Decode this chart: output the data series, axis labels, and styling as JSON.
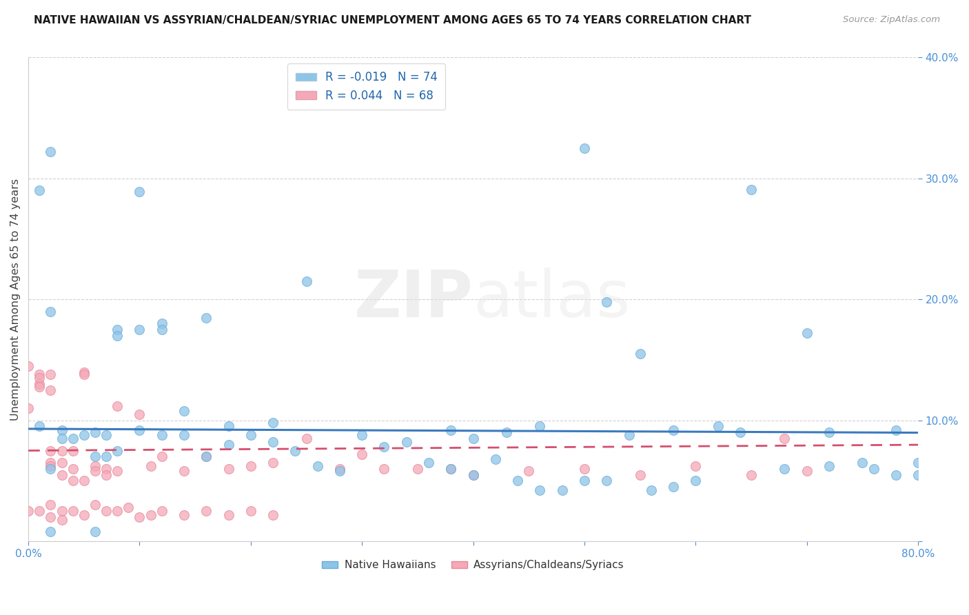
{
  "title": "NATIVE HAWAIIAN VS ASSYRIAN/CHALDEAN/SYRIAC UNEMPLOYMENT AMONG AGES 65 TO 74 YEARS CORRELATION CHART",
  "source": "Source: ZipAtlas.com",
  "ylabel": "Unemployment Among Ages 65 to 74 years",
  "xlim": [
    0.0,
    0.8
  ],
  "ylim": [
    0.0,
    0.4
  ],
  "xticks": [
    0.0,
    0.1,
    0.2,
    0.3,
    0.4,
    0.5,
    0.6,
    0.7,
    0.8
  ],
  "xticklabels": [
    "0.0%",
    "",
    "",
    "",
    "",
    "",
    "",
    "",
    "80.0%"
  ],
  "yticks": [
    0.0,
    0.1,
    0.2,
    0.3,
    0.4
  ],
  "yticklabels": [
    "",
    "10.0%",
    "20.0%",
    "30.0%",
    "40.0%"
  ],
  "blue_color": "#8ec4e8",
  "pink_color": "#f4a8b8",
  "blue_edge_color": "#6aadd5",
  "pink_edge_color": "#e8889a",
  "blue_line_color": "#3a7abf",
  "pink_line_color": "#d44f6e",
  "R_blue": -0.019,
  "N_blue": 74,
  "R_pink": 0.044,
  "N_pink": 68,
  "legend_label_blue": "Native Hawaiians",
  "legend_label_pink": "Assyrians/Chaldeans/Syriacs",
  "blue_x": [
    0.02,
    0.01,
    0.1,
    0.02,
    0.08,
    0.01,
    0.03,
    0.03,
    0.06,
    0.08,
    0.12,
    0.1,
    0.14,
    0.05,
    0.07,
    0.07,
    0.22,
    0.25,
    0.18,
    0.38,
    0.4,
    0.43,
    0.46,
    0.5,
    0.52,
    0.55,
    0.58,
    0.62,
    0.65,
    0.7,
    0.72,
    0.75,
    0.78,
    0.8,
    0.02,
    0.04,
    0.06,
    0.08,
    0.1,
    0.12,
    0.14,
    0.16,
    0.18,
    0.2,
    0.22,
    0.24,
    0.26,
    0.28,
    0.3,
    0.32,
    0.34,
    0.36,
    0.38,
    0.4,
    0.42,
    0.44,
    0.46,
    0.48,
    0.5,
    0.52,
    0.54,
    0.56,
    0.58,
    0.6,
    0.64,
    0.68,
    0.72,
    0.76,
    0.78,
    0.8,
    0.02,
    0.06,
    0.12,
    0.16
  ],
  "blue_y": [
    0.322,
    0.29,
    0.289,
    0.19,
    0.175,
    0.095,
    0.092,
    0.085,
    0.09,
    0.17,
    0.18,
    0.175,
    0.108,
    0.088,
    0.088,
    0.07,
    0.098,
    0.215,
    0.095,
    0.092,
    0.085,
    0.09,
    0.095,
    0.325,
    0.198,
    0.155,
    0.092,
    0.095,
    0.291,
    0.172,
    0.09,
    0.065,
    0.092,
    0.065,
    0.06,
    0.085,
    0.07,
    0.075,
    0.092,
    0.088,
    0.088,
    0.07,
    0.08,
    0.088,
    0.082,
    0.075,
    0.062,
    0.058,
    0.088,
    0.078,
    0.082,
    0.065,
    0.06,
    0.055,
    0.068,
    0.05,
    0.042,
    0.042,
    0.05,
    0.05,
    0.088,
    0.042,
    0.045,
    0.05,
    0.09,
    0.06,
    0.062,
    0.06,
    0.055,
    0.055,
    0.008,
    0.008,
    0.175,
    0.185
  ],
  "pink_x": [
    0.0,
    0.0,
    0.01,
    0.01,
    0.01,
    0.01,
    0.02,
    0.02,
    0.02,
    0.02,
    0.02,
    0.03,
    0.03,
    0.03,
    0.04,
    0.04,
    0.04,
    0.05,
    0.05,
    0.05,
    0.06,
    0.06,
    0.07,
    0.07,
    0.08,
    0.08,
    0.1,
    0.11,
    0.12,
    0.14,
    0.16,
    0.18,
    0.2,
    0.22,
    0.25,
    0.28,
    0.3,
    0.32,
    0.35,
    0.38,
    0.4,
    0.45,
    0.5,
    0.55,
    0.6,
    0.65,
    0.68,
    0.7,
    0.0,
    0.01,
    0.02,
    0.02,
    0.03,
    0.03,
    0.04,
    0.05,
    0.06,
    0.07,
    0.08,
    0.09,
    0.1,
    0.11,
    0.12,
    0.14,
    0.16,
    0.18,
    0.2,
    0.22
  ],
  "pink_y": [
    0.145,
    0.11,
    0.138,
    0.13,
    0.135,
    0.128,
    0.138,
    0.125,
    0.075,
    0.065,
    0.062,
    0.075,
    0.065,
    0.055,
    0.075,
    0.06,
    0.05,
    0.14,
    0.138,
    0.05,
    0.062,
    0.058,
    0.06,
    0.055,
    0.112,
    0.058,
    0.105,
    0.062,
    0.07,
    0.058,
    0.07,
    0.06,
    0.062,
    0.065,
    0.085,
    0.06,
    0.072,
    0.06,
    0.06,
    0.06,
    0.055,
    0.058,
    0.06,
    0.055,
    0.062,
    0.055,
    0.085,
    0.058,
    0.025,
    0.025,
    0.03,
    0.02,
    0.025,
    0.018,
    0.025,
    0.022,
    0.03,
    0.025,
    0.025,
    0.028,
    0.02,
    0.022,
    0.025,
    0.022,
    0.025,
    0.022,
    0.025,
    0.022
  ],
  "watermark_zip": "ZIP",
  "watermark_atlas": "atlas",
  "background_color": "#ffffff",
  "grid_color": "#d0d0d0",
  "tick_color": "#4a90d9",
  "axis_color": "#cccccc"
}
